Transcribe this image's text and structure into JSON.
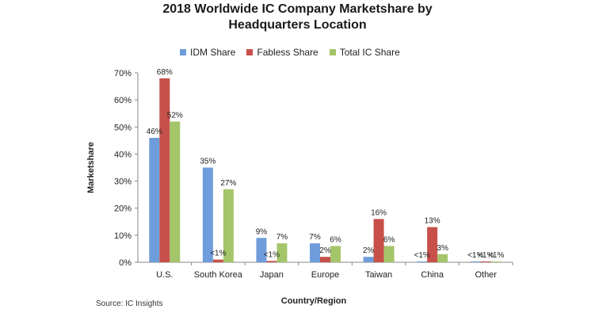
{
  "chart_data": {
    "type": "bar",
    "title_lines": [
      "2018 Worldwide IC Company Marketshare by",
      "Headquarters Location"
    ],
    "xlabel": "Country/Region",
    "ylabel": "Marketshare",
    "ylim": [
      0,
      70
    ],
    "yticks": [
      0,
      10,
      20,
      30,
      40,
      50,
      60,
      70
    ],
    "ytick_labels": [
      "0%",
      "10%",
      "20%",
      "30%",
      "40%",
      "50%",
      "60%",
      "70%"
    ],
    "categories": [
      "U.S.",
      "South Korea",
      "Japan",
      "Europe",
      "Taiwan",
      "China",
      "Other"
    ],
    "series": [
      {
        "name": "IDM Share",
        "color": "#6f9ddb",
        "values": [
          46,
          35,
          9,
          7,
          2,
          0.3,
          0.3
        ],
        "labels": [
          "46%",
          "35%",
          "9%",
          "7%",
          "2%",
          "<1%",
          "<1%"
        ]
      },
      {
        "name": "Fabless Share",
        "color": "#c8504a",
        "values": [
          68,
          1,
          0.5,
          2,
          16,
          13,
          0.3
        ],
        "labels": [
          "68%",
          "<1%",
          "<1%",
          "2%",
          "16%",
          "13%",
          "<1%"
        ]
      },
      {
        "name": "Total IC Share",
        "color": "#a5c56a",
        "values": [
          52,
          27,
          7,
          6,
          6,
          3,
          0.3
        ],
        "labels": [
          "52%",
          "27%",
          "7%",
          "6%",
          "6%",
          "3%",
          "<1%"
        ]
      }
    ],
    "legend_position": "top",
    "grid": false,
    "source": "Source: IC Insights"
  }
}
